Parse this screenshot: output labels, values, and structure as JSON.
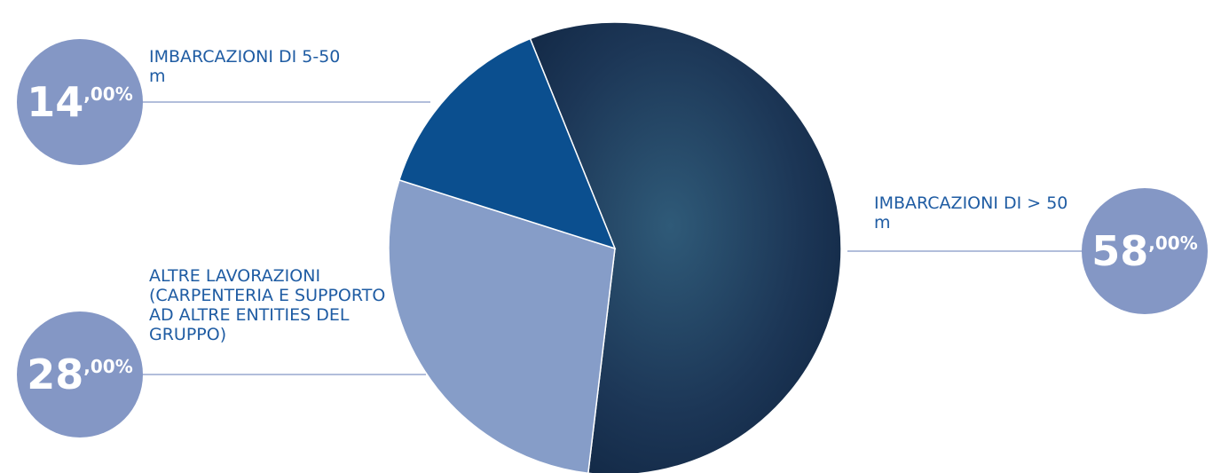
{
  "chart_data": {
    "type": "pie",
    "categories": [
      "IMBARCAZIONI DI > 50 m",
      "ALTRE LAVORAZIONI (CARPENTERIA E SUPPORTO AD ALTRE ENTITIES DEL GRUPPO)",
      "IMBARCAZIONI DI 5-50 m"
    ],
    "values": [
      58,
      28,
      14
    ],
    "value_labels": [
      "58,00%",
      "28,00%",
      "14,00%"
    ],
    "colors": [
      "#1c3656",
      "#869dc8",
      "#0b4f8f"
    ]
  }
}
